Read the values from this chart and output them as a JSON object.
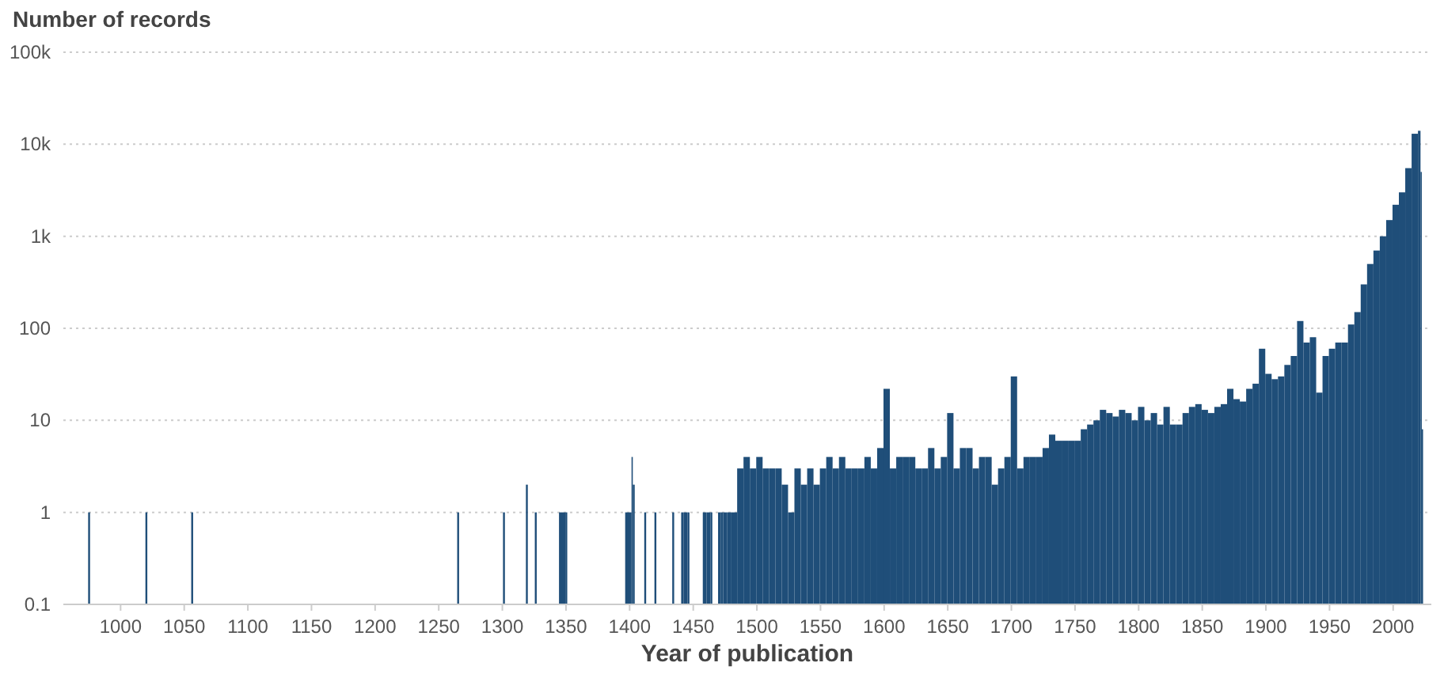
{
  "chart_data": {
    "type": "bar",
    "title": "Number of records",
    "xlabel": "Year of publication",
    "log": "y",
    "grid": "y",
    "color": "#1f4e79",
    "xlim": [
      955,
      2030
    ],
    "xticks": [
      1000,
      1050,
      1100,
      1150,
      1200,
      1250,
      1300,
      1350,
      1400,
      1450,
      1500,
      1550,
      1600,
      1650,
      1700,
      1750,
      1800,
      1850,
      1900,
      1950,
      2000
    ],
    "ylim": [
      0.1,
      100000
    ],
    "yticks": [
      0.1,
      1,
      10,
      100,
      {
        "value": 1000,
        "label": "1k"
      },
      {
        "value": 10000,
        "label": "10k"
      },
      {
        "value": 100000,
        "label": "100k"
      }
    ],
    "x": [
      975,
      1020,
      1056,
      1265,
      1301,
      1319,
      1326,
      1345,
      1350,
      1397,
      1402,
      1403,
      1412,
      1420,
      1434,
      1441,
      1443,
      1446,
      1458,
      1461,
      1464,
      1470,
      1472,
      1474,
      1477,
      1480,
      1485,
      1490,
      1495,
      1500,
      1505,
      1510,
      1515,
      1520,
      1525,
      1530,
      1535,
      1540,
      1545,
      1550,
      1555,
      1560,
      1565,
      1570,
      1575,
      1580,
      1585,
      1590,
      1595,
      1600,
      1605,
      1610,
      1615,
      1620,
      1625,
      1630,
      1635,
      1640,
      1645,
      1650,
      1655,
      1660,
      1665,
      1670,
      1675,
      1680,
      1685,
      1690,
      1695,
      1700,
      1705,
      1710,
      1715,
      1720,
      1725,
      1730,
      1735,
      1740,
      1745,
      1750,
      1755,
      1760,
      1765,
      1770,
      1775,
      1780,
      1785,
      1790,
      1795,
      1800,
      1805,
      1810,
      1815,
      1820,
      1825,
      1830,
      1835,
      1840,
      1845,
      1850,
      1855,
      1860,
      1865,
      1870,
      1875,
      1880,
      1885,
      1890,
      1895,
      1900,
      1905,
      1910,
      1915,
      1920,
      1925,
      1930,
      1935,
      1940,
      1945,
      1950,
      1955,
      1960,
      1965,
      1970,
      1975,
      1980,
      1985,
      1990,
      1995,
      2000,
      2005,
      2010,
      2015,
      2020,
      2022,
      2023
    ],
    "values": [
      1,
      1,
      1,
      1,
      1,
      2,
      1,
      1,
      1,
      1,
      4,
      2,
      1,
      1,
      1,
      1,
      1,
      1,
      1,
      1,
      1,
      1,
      1,
      1,
      1,
      1,
      3,
      4,
      3,
      4,
      3,
      3,
      3,
      2,
      1,
      3,
      2,
      3,
      2,
      3,
      4,
      3,
      4,
      3,
      3,
      3,
      4,
      3,
      5,
      22,
      3,
      4,
      4,
      4,
      3,
      3,
      5,
      3,
      4,
      12,
      3,
      5,
      5,
      3,
      4,
      4,
      2,
      3,
      4,
      30,
      3,
      4,
      4,
      4,
      5,
      7,
      6,
      6,
      6,
      6,
      8,
      9,
      10,
      13,
      12,
      11,
      13,
      12,
      10,
      14,
      10,
      12,
      9,
      14,
      9,
      9,
      12,
      14,
      15,
      13,
      12,
      14,
      15,
      22,
      17,
      16,
      22,
      25,
      60,
      32,
      28,
      30,
      40,
      50,
      120,
      70,
      80,
      20,
      50,
      60,
      70,
      70,
      110,
      150,
      300,
      500,
      700,
      1000,
      1500,
      2200,
      3000,
      5500,
      13000,
      14000,
      5000,
      8
    ]
  }
}
